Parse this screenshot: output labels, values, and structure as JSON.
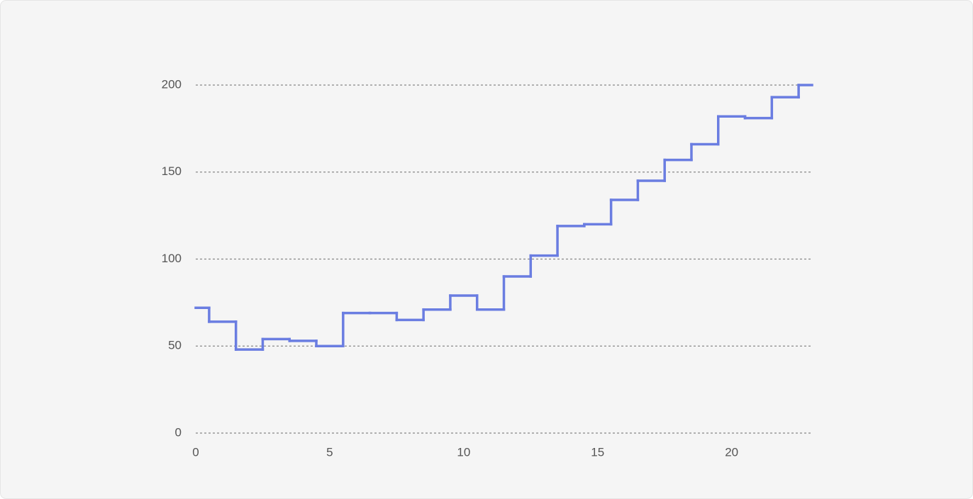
{
  "chart_data": {
    "type": "step",
    "x": [
      0,
      1,
      2,
      3,
      4,
      5,
      6,
      7,
      8,
      9,
      10,
      11,
      12,
      13,
      14,
      15,
      16,
      17,
      18,
      19,
      20,
      21,
      22,
      23
    ],
    "series": [
      {
        "color": "#6a7de1",
        "values": [
          72,
          64,
          48,
          54,
          53,
          50,
          69,
          69,
          65,
          71,
          79,
          71,
          90,
          102,
          119,
          120,
          134,
          145,
          157,
          166,
          182,
          181,
          193,
          200
        ]
      }
    ],
    "xlim": [
      0,
      23
    ],
    "xticks": [
      0,
      5,
      10,
      15,
      20
    ],
    "ylim": [
      0,
      200
    ],
    "yticks": [
      0,
      50,
      100,
      150,
      200
    ],
    "grid": true
  }
}
